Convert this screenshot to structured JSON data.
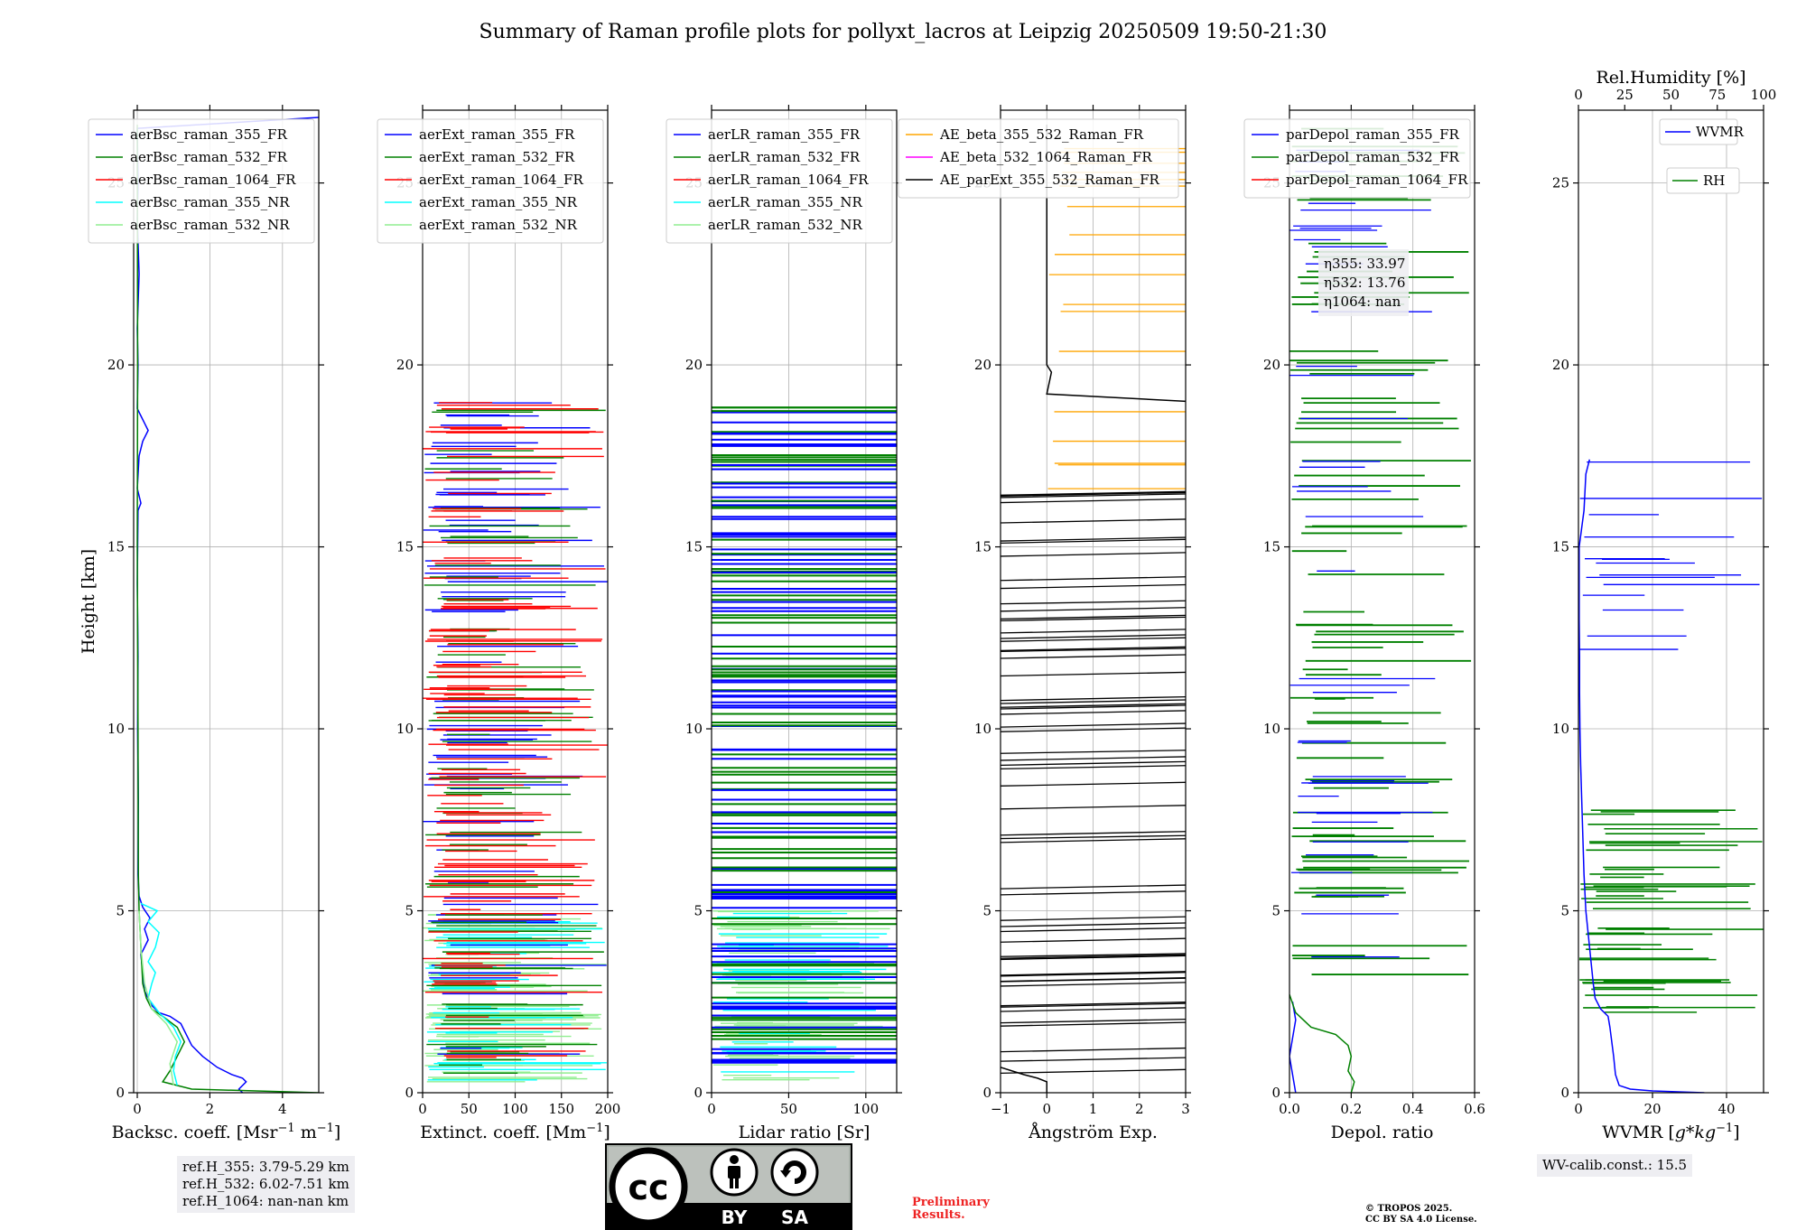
{
  "title": "Summary of Raman profile plots for pollyxt_lacros at Leipzig 20250509 19:50-21:30",
  "ref_box": [
    "ref.H_355: 3.79-5.29 km",
    "ref.H_532: 6.02-7.51 km",
    "ref.H_1064: nan-nan km"
  ],
  "wv_calib": "WV-calib.const.: 15.5",
  "preliminary": [
    "Preliminary",
    "Results."
  ],
  "copyright": [
    "© TROPOS 2025.",
    "CC BY SA 4.0 License."
  ],
  "license_badge": {
    "by": "BY",
    "sa": "SA",
    "cc": "cc"
  },
  "chart_data": [
    {
      "type": "line",
      "xlabel": "Backsc. coeff. [Msr$^{-1}$ m$^{-1}$]",
      "xlabel_parts": [
        "Backsc. coeff. [Msr",
        "−1",
        " m",
        "−1",
        "]"
      ],
      "ylabel": "Height [km]",
      "xlim": [
        -0.1,
        5
      ],
      "ylim": [
        0,
        27
      ],
      "xticks": [
        0,
        2,
        4
      ],
      "yticks": [
        0,
        5,
        10,
        15,
        20,
        25
      ],
      "grid": true,
      "legend_position": "upper-left",
      "series": [
        {
          "name": "aerBsc_raman_355_FR",
          "color": "#0000ff",
          "points": [
            [
              2.9,
              0
            ],
            [
              2.8,
              0.1
            ],
            [
              3.0,
              0.3
            ],
            [
              2.9,
              0.4
            ],
            [
              2.6,
              0.5
            ],
            [
              2.2,
              0.7
            ],
            [
              1.8,
              1.0
            ],
            [
              1.5,
              1.3
            ],
            [
              1.35,
              1.6
            ],
            [
              1.2,
              1.9
            ],
            [
              0.9,
              2.1
            ],
            [
              0.6,
              2.2
            ],
            [
              0.4,
              2.4
            ],
            [
              0.2,
              2.8
            ],
            [
              0.15,
              3.3
            ],
            [
              0.1,
              3.8
            ],
            [
              0.3,
              4.2
            ],
            [
              0.2,
              4.5
            ],
            [
              0.35,
              4.8
            ],
            [
              0.15,
              5.1
            ],
            [
              0.05,
              5.4
            ],
            [
              0.02,
              6
            ],
            [
              0.03,
              8
            ],
            [
              0.01,
              10
            ],
            [
              0.02,
              12
            ],
            [
              0.0,
              14
            ],
            [
              0.02,
              16
            ],
            [
              0.1,
              16.2
            ],
            [
              0.0,
              16.6
            ],
            [
              0.05,
              17.5
            ],
            [
              0.15,
              17.9
            ],
            [
              0.3,
              18.2
            ],
            [
              0.2,
              18.4
            ],
            [
              0.1,
              18.6
            ],
            [
              0.0,
              18.8
            ],
            [
              0.02,
              20
            ],
            [
              0.0,
              21
            ],
            [
              0.05,
              22.5
            ],
            [
              0.0,
              24
            ],
            [
              0.02,
              25
            ],
            [
              0.0,
              26.5
            ],
            [
              5,
              26.8
            ]
          ]
        },
        {
          "name": "aerBsc_raman_532_FR",
          "color": "#008000",
          "points": [
            [
              5,
              0
            ],
            [
              1.5,
              0.1
            ],
            [
              0.7,
              0.3
            ],
            [
              0.9,
              0.6
            ],
            [
              1.1,
              1.0
            ],
            [
              1.3,
              1.4
            ],
            [
              1.1,
              1.8
            ],
            [
              0.7,
              2.1
            ],
            [
              0.4,
              2.3
            ],
            [
              0.25,
              2.6
            ],
            [
              0.15,
              3.0
            ],
            [
              0.1,
              4.0
            ],
            [
              0.05,
              5.0
            ],
            [
              0.03,
              6.0
            ],
            [
              0.02,
              10
            ],
            [
              0.0,
              15
            ],
            [
              0.01,
              20
            ],
            [
              0.0,
              26.6
            ]
          ]
        },
        {
          "name": "aerBsc_raman_1064_FR",
          "color": "#ff0000",
          "points": []
        },
        {
          "name": "aerBsc_raman_355_NR",
          "color": "#00ffff",
          "points": [
            [
              1.1,
              0.2
            ],
            [
              1.0,
              0.6
            ],
            [
              1.05,
              1.0
            ],
            [
              1.2,
              1.4
            ],
            [
              1.0,
              1.8
            ],
            [
              0.6,
              2.2
            ],
            [
              0.3,
              2.6
            ],
            [
              0.4,
              3.0
            ],
            [
              0.5,
              3.3
            ],
            [
              0.3,
              3.6
            ],
            [
              0.5,
              4.0
            ],
            [
              0.6,
              4.4
            ],
            [
              0.3,
              4.7
            ],
            [
              0.55,
              5.0
            ],
            [
              0.1,
              5.2
            ]
          ]
        },
        {
          "name": "aerBsc_raman_532_NR",
          "color": "#90ee90",
          "points": [
            [
              1.0,
              0.2
            ],
            [
              0.9,
              0.8
            ],
            [
              1.1,
              1.4
            ],
            [
              0.8,
              1.9
            ],
            [
              0.4,
              2.3
            ],
            [
              0.2,
              3.0
            ],
            [
              0.1,
              4.0
            ],
            [
              0.05,
              5.0
            ]
          ]
        }
      ]
    },
    {
      "type": "line",
      "xlabel": "Extinct. coeff. [Mm$^{-1}$]",
      "xlabel_parts": [
        "Extinct. coeff. [Mm",
        "−1",
        "]"
      ],
      "xlim": [
        0,
        200
      ],
      "ylim": [
        0,
        27
      ],
      "xticks": [
        0,
        50,
        100,
        150,
        200
      ],
      "yticks": [
        0,
        5,
        10,
        15,
        20,
        25
      ],
      "grid": true,
      "legend_position": "upper-left",
      "series": [
        {
          "name": "aerExt_raman_355_FR",
          "color": "#0000ff",
          "points": []
        },
        {
          "name": "aerExt_raman_532_FR",
          "color": "#008000",
          "points": []
        },
        {
          "name": "aerExt_raman_1064_FR",
          "color": "#ff0000",
          "points": []
        },
        {
          "name": "aerExt_raman_355_NR",
          "color": "#00ffff",
          "points": []
        },
        {
          "name": "aerExt_raman_532_NR",
          "color": "#90ee90",
          "points": []
        }
      ]
    },
    {
      "type": "line",
      "xlabel": "Lidar ratio [Sr]",
      "xlim": [
        0,
        120
      ],
      "ylim": [
        0,
        27
      ],
      "xticks": [
        0,
        50,
        100
      ],
      "yticks": [
        0,
        5,
        10,
        15,
        20,
        25
      ],
      "grid": true,
      "legend_position": "upper-left",
      "series": [
        {
          "name": "aerLR_raman_355_FR",
          "color": "#0000ff",
          "points": []
        },
        {
          "name": "aerLR_raman_532_FR",
          "color": "#008000",
          "points": []
        },
        {
          "name": "aerLR_raman_1064_FR",
          "color": "#ff0000",
          "points": []
        },
        {
          "name": "aerLR_raman_355_NR",
          "color": "#00ffff",
          "points": []
        },
        {
          "name": "aerLR_raman_532_NR",
          "color": "#90ee90",
          "points": []
        }
      ]
    },
    {
      "type": "line",
      "xlabel": "Ångström Exp.",
      "xlim": [
        -1,
        3
      ],
      "ylim": [
        0,
        27
      ],
      "xticks": [
        -1,
        0,
        1,
        2,
        3
      ],
      "yticks": [
        0,
        5,
        10,
        15,
        20,
        25
      ],
      "grid": true,
      "legend_position": "upper-left",
      "series": [
        {
          "name": "AE_beta_355_532_Raman_FR",
          "color": "#ffa500",
          "points": []
        },
        {
          "name": "AE_beta_532_1064_Raman_FR",
          "color": "#ff00ff",
          "points": []
        },
        {
          "name": "AE_parExt_355_532_Raman_FR",
          "color": "#000000",
          "points": [
            [
              -1,
              0.7
            ],
            [
              -0.5,
              0.5
            ],
            [
              -0.2,
              0.4
            ],
            [
              0,
              0.3
            ],
            [
              0,
              0
            ]
          ]
        }
      ]
    },
    {
      "type": "line",
      "xlabel": "Depol. ratio",
      "xlim": [
        0,
        0.6
      ],
      "ylim": [
        0,
        27
      ],
      "xticks": [
        0.0,
        0.2,
        0.4,
        0.6
      ],
      "yticks": [
        0,
        5,
        10,
        15,
        20,
        25
      ],
      "grid": true,
      "legend_position": "upper-left",
      "annotation": [
        "η355: 33.97",
        "η532: 13.76",
        "η1064: nan"
      ],
      "series": [
        {
          "name": "parDepol_raman_355_FR",
          "color": "#0000ff",
          "points": [
            [
              0.02,
              0
            ],
            [
              0.01,
              0.5
            ],
            [
              0.0,
              1.0
            ],
            [
              0.01,
              1.5
            ],
            [
              0.02,
              2.0
            ],
            [
              0.01,
              2.5
            ]
          ]
        },
        {
          "name": "parDepol_raman_532_FR",
          "color": "#008000",
          "points": [
            [
              0.2,
              0
            ],
            [
              0.21,
              0.3
            ],
            [
              0.19,
              0.6
            ],
            [
              0.2,
              1.0
            ],
            [
              0.19,
              1.3
            ],
            [
              0.15,
              1.6
            ],
            [
              0.07,
              1.8
            ],
            [
              0.02,
              2.2
            ],
            [
              0.0,
              2.7
            ]
          ]
        },
        {
          "name": "parDepol_raman_1064_FR",
          "color": "#ff0000",
          "points": []
        }
      ]
    },
    {
      "type": "line",
      "xlabel": "WVMR [$g*kg^{-1}$]",
      "xlabel_parts": [
        "WVMR [",
        "g*kg",
        "−1",
        "]"
      ],
      "top_xlabel": "Rel.Humidity [%]",
      "xlim": [
        0,
        50
      ],
      "ylim": [
        0,
        27
      ],
      "xticks": [
        0,
        20,
        40
      ],
      "top_xticks": [
        0,
        25,
        50,
        75,
        100
      ],
      "yticks": [
        0,
        5,
        10,
        15,
        20,
        25
      ],
      "grid": true,
      "series": [
        {
          "name": "WVMR",
          "color": "#0000ff",
          "points": [
            [
              34,
              0
            ],
            [
              20,
              0.05
            ],
            [
              14,
              0.1
            ],
            [
              11,
              0.2
            ],
            [
              10,
              0.5
            ],
            [
              9.5,
              1.0
            ],
            [
              9,
              1.4
            ],
            [
              8.5,
              1.8
            ],
            [
              8,
              2.1
            ],
            [
              6,
              2.3
            ],
            [
              4.5,
              2.6
            ],
            [
              4,
              3.0
            ],
            [
              3.5,
              3.5
            ],
            [
              3,
              4.0
            ],
            [
              2.5,
              4.5
            ],
            [
              2,
              5.0
            ],
            [
              1.5,
              6.0
            ],
            [
              1.2,
              7.0
            ],
            [
              0.9,
              8.0
            ],
            [
              0.6,
              9.0
            ],
            [
              0.4,
              10.0
            ],
            [
              0.3,
              11
            ],
            [
              0.3,
              12
            ],
            [
              0.2,
              13
            ],
            [
              0.2,
              14
            ],
            [
              0.2,
              15
            ],
            [
              1.5,
              16
            ],
            [
              2,
              17
            ],
            [
              3,
              17.4
            ]
          ]
        },
        {
          "name": "RH",
          "color": "#008000",
          "points": []
        }
      ]
    }
  ]
}
